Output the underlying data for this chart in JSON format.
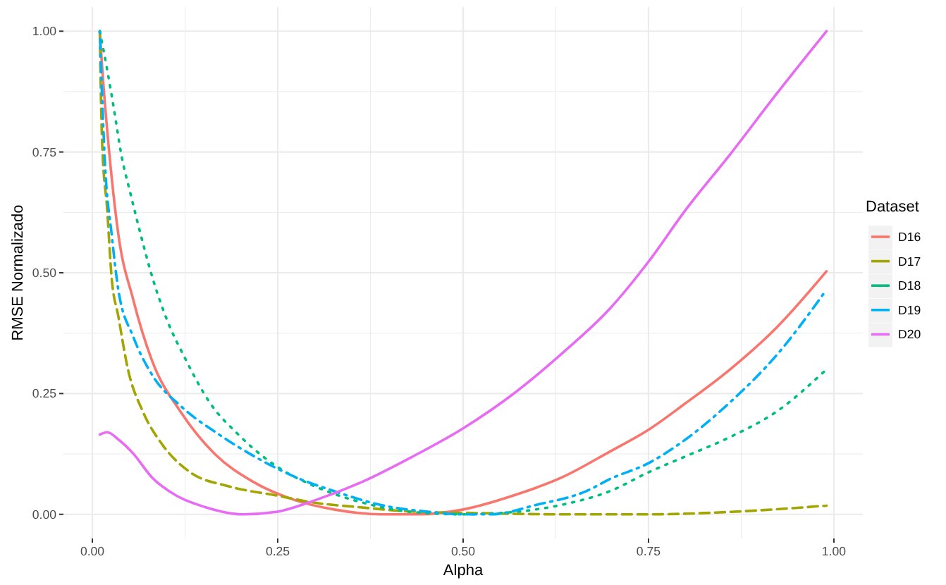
{
  "chart_data": {
    "type": "line",
    "xlabel": "Alpha",
    "ylabel": "RMSE Normalizado",
    "legend_title": "Dataset",
    "legend": "right",
    "grid": true,
    "xlim": [
      -0.039,
      1.039
    ],
    "ylim": [
      -0.05,
      1.05
    ],
    "xticks": [
      {
        "value": 0,
        "label": "0.00"
      },
      {
        "value": 0.125,
        "label": null
      },
      {
        "value": 0.25,
        "label": "0.25"
      },
      {
        "value": 0.375,
        "label": null
      },
      {
        "value": 0.5,
        "label": "0.50"
      },
      {
        "value": 0.625,
        "label": null
      },
      {
        "value": 0.75,
        "label": "0.75"
      },
      {
        "value": 0.875,
        "label": null
      },
      {
        "value": 1,
        "label": "1.00"
      }
    ],
    "yticks": [
      {
        "value": 0,
        "label": "0.00"
      },
      {
        "value": 0.125,
        "label": null
      },
      {
        "value": 0.25,
        "label": "0.25"
      },
      {
        "value": 0.375,
        "label": null
      },
      {
        "value": 0.5,
        "label": "0.50"
      },
      {
        "value": 0.625,
        "label": null
      },
      {
        "value": 0.75,
        "label": "0.75"
      },
      {
        "value": 0.875,
        "label": null
      },
      {
        "value": 1,
        "label": "1.00"
      }
    ],
    "series": [
      {
        "name": "D16",
        "color": "#f8766d",
        "line_style": "solid",
        "x": [
          0.01,
          0.013,
          0.023,
          0.035,
          0.055,
          0.08,
          0.12,
          0.165,
          0.216,
          0.274,
          0.326,
          0.39,
          0.44,
          0.5,
          0.57,
          0.634,
          0.698,
          0.75,
          0.8,
          0.86,
          0.923,
          0.99
        ],
        "values": [
          1.0,
          0.93,
          0.745,
          0.58,
          0.445,
          0.32,
          0.21,
          0.125,
          0.068,
          0.029,
          0.01,
          0.0,
          0.0,
          0.01,
          0.04,
          0.077,
          0.13,
          0.175,
          0.23,
          0.3,
          0.387,
          0.503
        ]
      },
      {
        "name": "D17",
        "color": "#a3a500",
        "line_style": "dashed",
        "x": [
          0.01,
          0.013,
          0.02,
          0.026,
          0.035,
          0.048,
          0.068,
          0.094,
          0.132,
          0.184,
          0.248,
          0.3,
          0.358,
          0.44,
          0.505,
          0.634,
          0.75,
          0.86,
          0.99
        ],
        "values": [
          1.0,
          0.775,
          0.63,
          0.49,
          0.41,
          0.3,
          0.213,
          0.145,
          0.087,
          0.058,
          0.039,
          0.024,
          0.015,
          0.005,
          0.003,
          0.0,
          0.0,
          0.005,
          0.018
        ]
      },
      {
        "name": "D18",
        "color": "#00bf7d",
        "line_style": "dotted",
        "x": [
          0.01,
          0.02,
          0.029,
          0.039,
          0.052,
          0.065,
          0.081,
          0.1,
          0.126,
          0.158,
          0.197,
          0.242,
          0.3,
          0.365,
          0.43,
          0.5,
          0.57,
          0.634,
          0.698,
          0.75,
          0.8,
          0.86,
          0.923,
          0.99
        ],
        "values": [
          1.0,
          0.92,
          0.84,
          0.745,
          0.66,
          0.58,
          0.49,
          0.405,
          0.32,
          0.232,
          0.165,
          0.106,
          0.058,
          0.024,
          0.005,
          0.0,
          0.005,
          0.02,
          0.048,
          0.087,
          0.12,
          0.16,
          0.213,
          0.3
        ]
      },
      {
        "name": "D19",
        "color": "#00b0f6",
        "line_style": "dashdot",
        "x": [
          0.01,
          0.013,
          0.017,
          0.026,
          0.035,
          0.055,
          0.08,
          0.12,
          0.171,
          0.223,
          0.274,
          0.326,
          0.39,
          0.455,
          0.5,
          0.537,
          0.6,
          0.666,
          0.698,
          0.75,
          0.8,
          0.86,
          0.923,
          0.99
        ],
        "values": [
          1.0,
          0.87,
          0.726,
          0.58,
          0.465,
          0.368,
          0.29,
          0.223,
          0.165,
          0.116,
          0.077,
          0.048,
          0.019,
          0.005,
          0.0,
          0.0,
          0.02,
          0.048,
          0.073,
          0.106,
          0.155,
          0.232,
          0.33,
          0.465
        ]
      },
      {
        "name": "D20",
        "color": "#e76bf3",
        "line_style": "solid",
        "x": [
          0.01,
          0.02,
          0.035,
          0.055,
          0.08,
          0.113,
          0.152,
          0.203,
          0.248,
          0.3,
          0.365,
          0.43,
          0.5,
          0.57,
          0.634,
          0.698,
          0.75,
          0.8,
          0.86,
          0.923,
          0.99
        ],
        "values": [
          0.165,
          0.17,
          0.155,
          0.126,
          0.077,
          0.039,
          0.015,
          0.0,
          0.005,
          0.029,
          0.068,
          0.118,
          0.178,
          0.252,
          0.334,
          0.426,
          0.523,
          0.63,
          0.745,
          0.871,
          1.0
        ]
      }
    ]
  }
}
